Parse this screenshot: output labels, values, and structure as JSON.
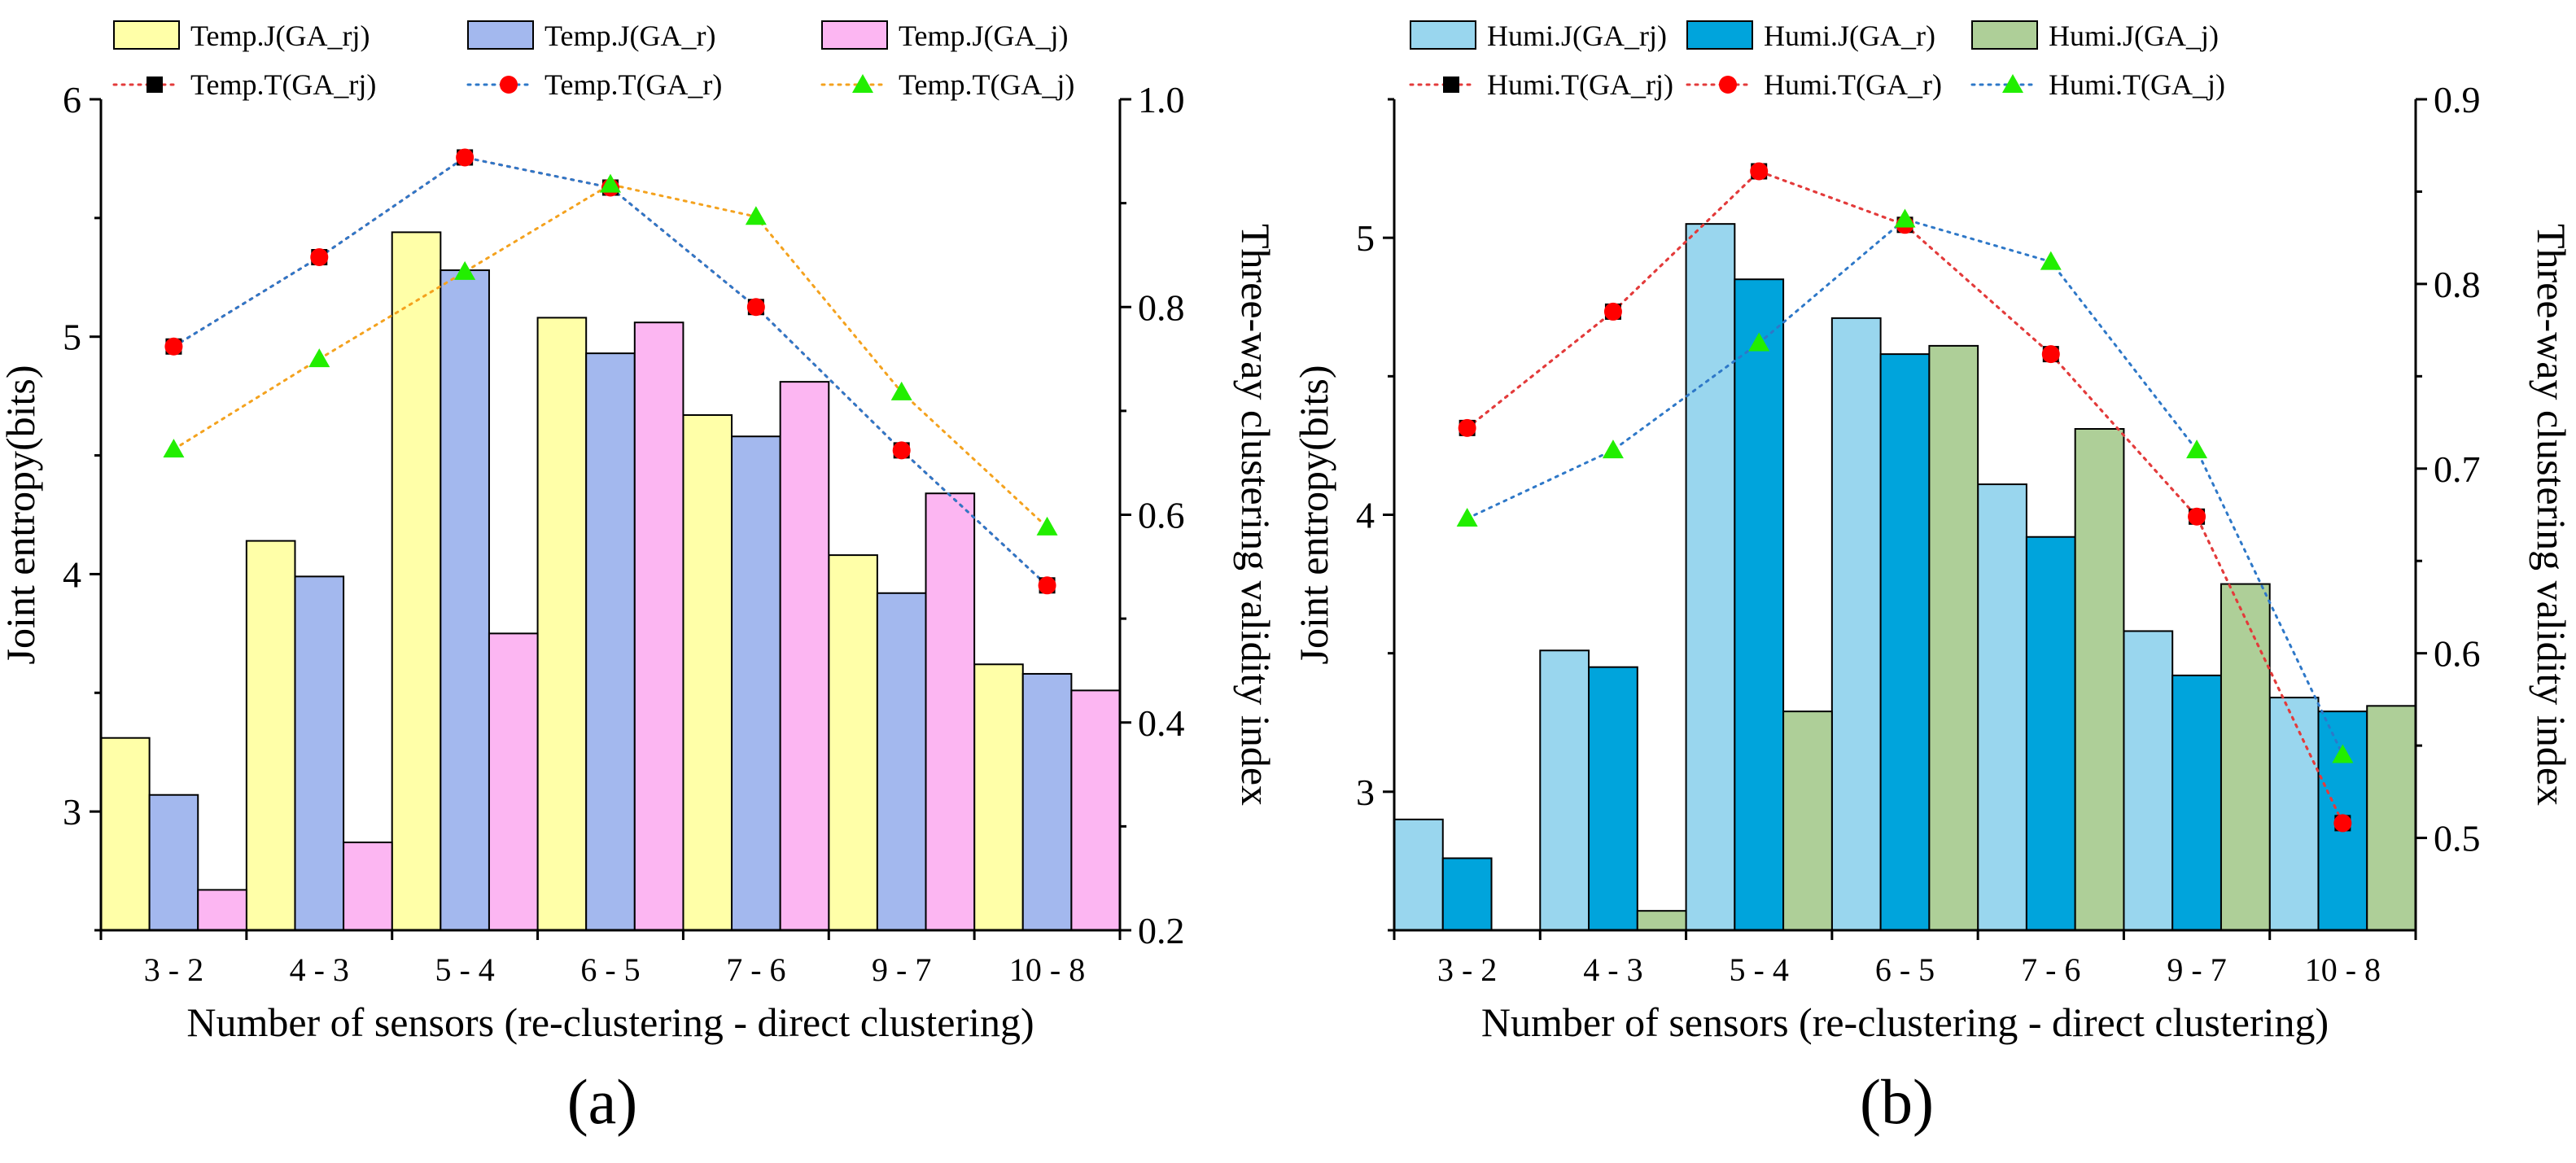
{
  "chart_data": [
    {
      "type": "bar+line",
      "panel_label": "(a)",
      "categories": [
        "3 - 2",
        "4 - 3",
        "5 - 4",
        "6 - 5",
        "7 - 6",
        "9 - 7",
        "10 - 8"
      ],
      "xlabel": "Number of sensors (re-clustering - direct clustering)",
      "ylabel": "Joint entropy(bits)",
      "y2label": "Three-way clustering validity index",
      "ylim": [
        2.5,
        6
      ],
      "yticks": [
        3,
        4,
        5,
        6
      ],
      "y2lim": [
        0.2,
        1.0
      ],
      "y2ticks": [
        0.2,
        0.4,
        0.6,
        0.8,
        1.0
      ],
      "y2tick_labels": [
        "0.2",
        "0.4",
        "0.6",
        "0.8",
        "1.0"
      ],
      "bar_series": [
        {
          "name": "Temp.J(GA_rj)",
          "color": "#FFFFA8",
          "values": [
            3.31,
            4.14,
            5.44,
            5.08,
            4.67,
            4.08,
            3.62
          ]
        },
        {
          "name": "Temp.J(GA_r)",
          "color": "#A3B8EE",
          "values": [
            3.07,
            3.99,
            5.28,
            4.93,
            4.58,
            3.92,
            3.58
          ]
        },
        {
          "name": "Temp.J(GA_j)",
          "color": "#FCB6F2",
          "values": [
            2.67,
            2.87,
            3.75,
            5.06,
            4.81,
            4.34,
            3.51
          ]
        }
      ],
      "line_series": [
        {
          "name": "Temp.T(GA_rj)",
          "marker": "square",
          "marker_color": "#000000",
          "line_color": "#E33B3B",
          "values": [
            0.762,
            0.848,
            0.944,
            0.915,
            0.8,
            0.662,
            0.532
          ]
        },
        {
          "name": "Temp.T(GA_r)",
          "marker": "circle",
          "marker_color": "#FF0000",
          "line_color": "#2E78C8",
          "values": [
            0.762,
            0.848,
            0.944,
            0.915,
            0.8,
            0.662,
            0.532
          ]
        },
        {
          "name": "Temp.T(GA_j)",
          "marker": "triangle",
          "marker_color": "#22EE00",
          "line_color": "#F4A21E",
          "values": [
            0.663,
            0.75,
            0.834,
            0.918,
            0.887,
            0.718,
            0.588
          ]
        }
      ]
    },
    {
      "type": "bar+line",
      "panel_label": "(b)",
      "categories": [
        "3 - 2",
        "4 - 3",
        "5 - 4",
        "6 - 5",
        "7 - 6",
        "9 - 7",
        "10 - 8"
      ],
      "xlabel": "Number of sensors (re-clustering - direct clustering)",
      "ylabel": "Joint entropy(bits)",
      "y2label": "Three-way clustering validity index",
      "ylim": [
        2.5,
        5.5
      ],
      "yticks": [
        3,
        4,
        5
      ],
      "y2lim": [
        0.45,
        0.9
      ],
      "y2ticks": [
        0.5,
        0.6,
        0.7,
        0.8,
        0.9
      ],
      "y2tick_labels": [
        "0.5",
        "0.6",
        "0.7",
        "0.8",
        "0.9"
      ],
      "bar_series": [
        {
          "name": "Humi.J(GA_rj)",
          "color": "#99D6EE",
          "values": [
            2.9,
            3.51,
            5.05,
            4.71,
            4.11,
            3.58,
            3.34
          ]
        },
        {
          "name": "Humi.J(GA_r)",
          "color": "#00A4DC",
          "values": [
            2.76,
            3.45,
            4.85,
            4.58,
            3.92,
            3.42,
            3.29
          ]
        },
        {
          "name": "Humi.J(GA_j)",
          "color": "#AECF98",
          "values": [
            2.5,
            2.57,
            3.29,
            4.61,
            4.31,
            3.75,
            3.31
          ]
        }
      ],
      "line_series": [
        {
          "name": "Humi.T(GA_rj)",
          "marker": "square",
          "marker_color": "#000000",
          "line_color": "#E33B3B",
          "values": [
            0.722,
            0.785,
            0.861,
            0.832,
            0.762,
            0.674,
            0.508
          ]
        },
        {
          "name": "Humi.T(GA_r)",
          "marker": "circle",
          "marker_color": "#FF0000",
          "line_color": "#E33B3B",
          "values": [
            0.722,
            0.785,
            0.861,
            0.832,
            0.762,
            0.674,
            0.508
          ]
        },
        {
          "name": "Humi.T(GA_j)",
          "marker": "triangle",
          "marker_color": "#22EE00",
          "line_color": "#2E78C8",
          "values": [
            0.673,
            0.71,
            0.768,
            0.835,
            0.812,
            0.71,
            0.545
          ]
        }
      ]
    }
  ]
}
